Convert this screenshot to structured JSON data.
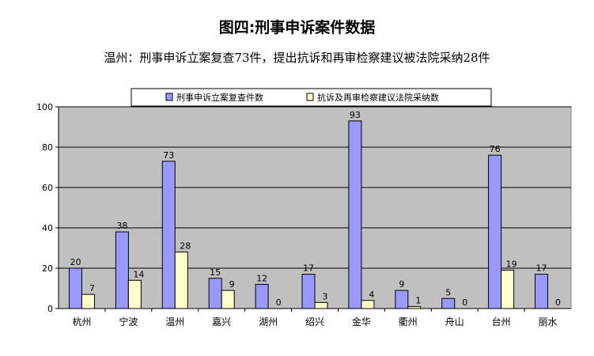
{
  "chart_data": {
    "type": "bar",
    "title": "图四:刑事申诉案件数据",
    "subtitle": "温州：刑事申诉立案复查73件，提出抗诉和再审检察建议被法院采纳28件",
    "categories": [
      "杭州",
      "宁波",
      "温州",
      "嘉兴",
      "湖州",
      "绍兴",
      "金华",
      "衢州",
      "舟山",
      "台州",
      "丽水"
    ],
    "series": [
      {
        "name": "刑事申诉立案复查件数",
        "color": "#9999FF",
        "values": [
          20,
          38,
          73,
          15,
          12,
          17,
          93,
          9,
          5,
          76,
          17
        ]
      },
      {
        "name": "抗诉及再审检察建议法院采纳数",
        "color": "#FFFFCC",
        "values": [
          7,
          14,
          28,
          9,
          0,
          3,
          4,
          1,
          0,
          19,
          0
        ]
      }
    ],
    "ylim": [
      0,
      100
    ],
    "yticks": [
      0,
      20,
      40,
      60,
      80,
      100
    ],
    "grid": true,
    "legend_position": "top",
    "plot_background": "#C0C0C0"
  }
}
